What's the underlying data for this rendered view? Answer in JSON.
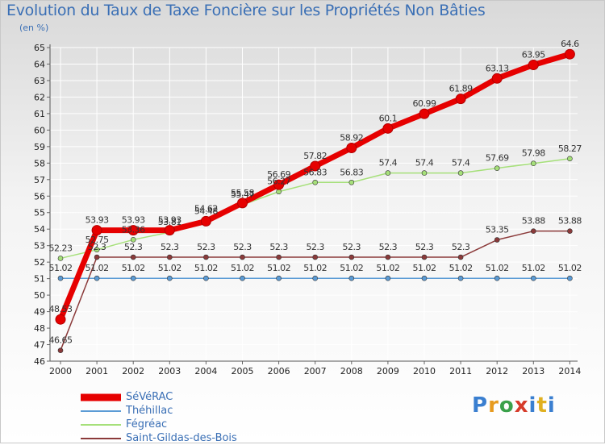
{
  "chart_data": {
    "type": "line",
    "title": "Evolution du Taux de Taxe Foncière sur les Propriétés Non Bâties",
    "ylabel": "(en %)",
    "xlabel": "",
    "ylim": [
      46,
      65
    ],
    "yticks": [
      46,
      47,
      48,
      49,
      50,
      51,
      52,
      53,
      54,
      55,
      56,
      57,
      58,
      59,
      60,
      61,
      62,
      63,
      64,
      65
    ],
    "x": [
      "2000",
      "2001",
      "2002",
      "2003",
      "2004",
      "2005",
      "2006",
      "2007",
      "2008",
      "2009",
      "2010",
      "2011",
      "2012",
      "2013",
      "2014"
    ],
    "series": [
      {
        "name": "SéVéRAC",
        "color": "#e60000",
        "values": [
          48.53,
          53.93,
          53.93,
          53.93,
          54.48,
          55.58,
          56.69,
          57.82,
          58.92,
          60.1,
          60.99,
          61.89,
          63.13,
          63.95,
          64.6
        ],
        "labels": [
          "48.53",
          "53.93",
          "53.93",
          "53.93",
          "54.48",
          "55.58",
          "56.69",
          "57.82",
          "58.92",
          "60.1",
          "60.99",
          "61.89",
          "63.13",
          "63.95",
          "64.6"
        ]
      },
      {
        "name": "Théhillac",
        "color": "#5b9bd5",
        "values": [
          51.02,
          51.02,
          51.02,
          51.02,
          51.02,
          51.02,
          51.02,
          51.02,
          51.02,
          51.02,
          51.02,
          51.02,
          51.02,
          51.02,
          51.02
        ],
        "labels": [
          "51.02",
          "51.02",
          "51.02",
          "51.02",
          "51.02",
          "51.02",
          "51.02",
          "51.02",
          "51.02",
          "51.02",
          "51.02",
          "51.02",
          "51.02",
          "51.02",
          "51.02"
        ]
      },
      {
        "name": "Fégréac",
        "color": "#a6e07a",
        "values": [
          52.23,
          52.75,
          53.36,
          53.81,
          54.62,
          55.47,
          56.27,
          56.83,
          56.83,
          57.4,
          57.4,
          57.4,
          57.69,
          57.98,
          58.27
        ],
        "labels": [
          "52.23",
          "52.75",
          "53.36",
          "53.81",
          "54.62",
          "55.47",
          "56.27",
          "56.83",
          "56.83",
          "57.4",
          "57.4",
          "57.4",
          "57.69",
          "57.98",
          "58.27"
        ]
      },
      {
        "name": "Saint-Gildas-des-Bois",
        "color": "#8b3a3a",
        "values": [
          46.65,
          52.3,
          52.3,
          52.3,
          52.3,
          52.3,
          52.3,
          52.3,
          52.3,
          52.3,
          52.3,
          52.3,
          53.35,
          53.88,
          53.88
        ],
        "labels": [
          "46.65",
          "52.3",
          "52.3",
          "52.3",
          "52.3",
          "52.3",
          "52.3",
          "52.3",
          "52.3",
          "52.3",
          "52.3",
          "52.3",
          "53.35",
          "53.88",
          "53.88"
        ]
      }
    ]
  },
  "legend": {
    "items": [
      "SéVéRAC",
      "Théhillac",
      "Fégréac",
      "Saint-Gildas-des-Bois"
    ]
  },
  "logo": {
    "p": "P",
    "r": "r",
    "o": "o",
    "x": "x",
    "i": "i",
    "t": "t",
    "i2": "i"
  }
}
